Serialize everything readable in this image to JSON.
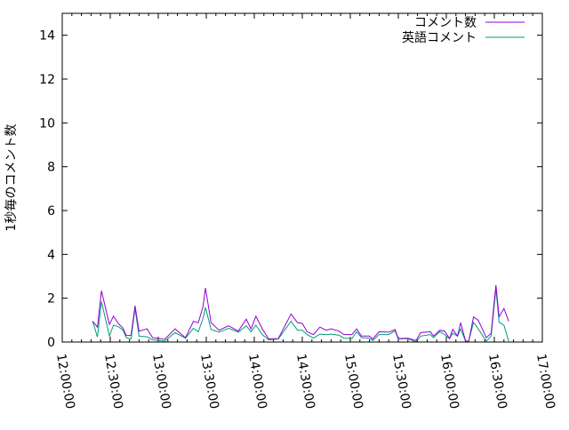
{
  "chart_data": {
    "type": "line",
    "title": "",
    "xlabel": "",
    "ylabel": "1秒毎のコメント数",
    "xlim": [
      "12:00:00",
      "17:00:00"
    ],
    "ylim": [
      0,
      15
    ],
    "xticks": [
      "12:00:00",
      "12:30:00",
      "13:00:00",
      "13:30:00",
      "14:00:00",
      "14:30:00",
      "15:00:00",
      "15:30:00",
      "16:00:00",
      "16:30:00",
      "17:00:00"
    ],
    "yticks": [
      "0",
      "2",
      "4",
      "6",
      "8",
      "10",
      "12",
      "14"
    ],
    "grid": false,
    "legend": "top-right",
    "x": [
      "12:19:00",
      "12:22:00",
      "12:24:30",
      "12:29:30",
      "12:32:00",
      "12:35:00",
      "12:38:00",
      "12:40:00",
      "12:43:00",
      "12:45:30",
      "12:48:00",
      "12:53:00",
      "12:56:30",
      "13:04:00",
      "13:10:30",
      "13:17:00",
      "13:22:00",
      "13:25:00",
      "13:28:00",
      "13:29:30",
      "13:33:00",
      "13:38:00",
      "13:44:00",
      "13:50:00",
      "13:55:00",
      "13:58:00",
      "14:01:00",
      "14:05:00",
      "14:09:00",
      "14:15:00",
      "14:23:00",
      "14:27:00",
      "14:30:00",
      "14:33:00",
      "14:37:00",
      "14:41:00",
      "14:45:00",
      "14:48:00",
      "14:53:00",
      "14:56:00",
      "15:01:00",
      "15:04:00",
      "15:07:00",
      "15:12:00",
      "15:14:00",
      "15:18:00",
      "15:24:00",
      "15:28:00",
      "15:30:00",
      "15:36:00",
      "15:41:00",
      "15:44:00",
      "15:50:00",
      "15:52:00",
      "15:56:00",
      "15:59:00",
      "16:02:00",
      "16:04:00",
      "16:07:00",
      "16:09:00",
      "16:12:00",
      "16:14:00",
      "16:17:00",
      "16:20:00",
      "16:25:00",
      "16:28:00",
      "16:30:00",
      "16:31:00",
      "16:33:00",
      "16:36:00",
      "16:39:00"
    ],
    "series": [
      {
        "name": "コメント数",
        "color": "#9400d3",
        "values": [
          0.95,
          0.68,
          2.34,
          0.8,
          1.18,
          0.85,
          0.63,
          0.3,
          0.3,
          1.66,
          0.5,
          0.6,
          0.2,
          0.12,
          0.6,
          0.2,
          0.95,
          0.88,
          1.62,
          2.47,
          0.88,
          0.54,
          0.74,
          0.5,
          1.04,
          0.6,
          1.18,
          0.6,
          0.14,
          0.16,
          1.28,
          0.88,
          0.85,
          0.47,
          0.34,
          0.68,
          0.54,
          0.6,
          0.5,
          0.34,
          0.34,
          0.6,
          0.27,
          0.27,
          0.14,
          0.47,
          0.45,
          0.57,
          0.16,
          0.18,
          0.07,
          0.43,
          0.47,
          0.27,
          0.54,
          0.5,
          0.16,
          0.58,
          0.27,
          0.88,
          0.04,
          0.04,
          1.15,
          0.99,
          0.2,
          0.4,
          1.89,
          2.6,
          1.15,
          1.53,
          0.95
        ]
      },
      {
        "name": "英語コメント",
        "color": "#009e73",
        "values": [
          0.95,
          0.23,
          1.85,
          0.27,
          0.77,
          0.7,
          0.54,
          0.2,
          0.14,
          1.53,
          0.27,
          0.24,
          0.1,
          0.04,
          0.43,
          0.18,
          0.63,
          0.47,
          1.08,
          1.58,
          0.57,
          0.45,
          0.63,
          0.45,
          0.74,
          0.47,
          0.77,
          0.34,
          0.1,
          0.14,
          0.95,
          0.54,
          0.54,
          0.34,
          0.18,
          0.36,
          0.34,
          0.36,
          0.31,
          0.18,
          0.16,
          0.47,
          0.2,
          0.18,
          0.07,
          0.34,
          0.34,
          0.51,
          0.14,
          0.16,
          0.0,
          0.27,
          0.34,
          0.2,
          0.47,
          0.34,
          0.16,
          0.4,
          0.27,
          0.6,
          0.04,
          0.04,
          0.9,
          0.6,
          0.04,
          0.27,
          1.69,
          2.43,
          0.9,
          0.77,
          0.04
        ]
      }
    ]
  }
}
